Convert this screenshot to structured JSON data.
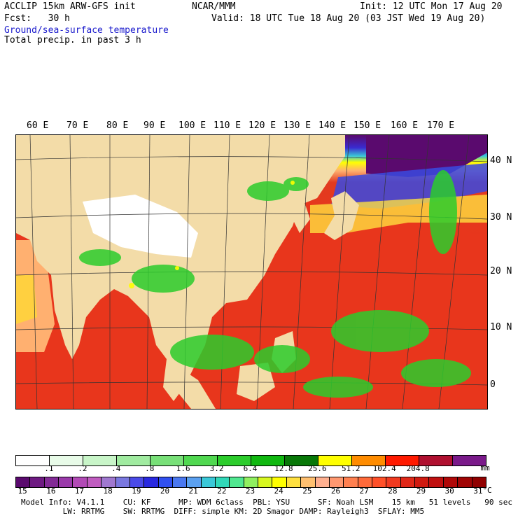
{
  "header": {
    "line1_left": "ACCLIP 15km ARW-GFS init",
    "line1_center": "NCAR/MMM",
    "line1_right": "Init: 12 UTC Mon 17 Aug 20",
    "line2_left": "Fcst:   30 h",
    "line2_right": "Valid: 18 UTC Tue 18 Aug 20 (03 JST Wed 19 Aug 20)",
    "line3": "Ground/sea-surface temperature",
    "line4": "Total precip. in past 3 h"
  },
  "map": {
    "lon_labels": [
      "60 E",
      "70 E",
      "80 E",
      "90 E",
      "100 E",
      "110 E",
      "120 E",
      "130 E",
      "140 E",
      "150 E",
      "160 E",
      "170 E"
    ],
    "lat_labels": [
      "40 N",
      "30 N",
      "20 N",
      "10 N",
      "0"
    ]
  },
  "precip_bar": {
    "colors": [
      "#ffffff",
      "#e8fbe8",
      "#c8f5c8",
      "#a0eba0",
      "#78e078",
      "#50d850",
      "#2ccc2c",
      "#10b810",
      "#087808",
      "#ffff00",
      "#ff8c00",
      "#ff1a00",
      "#b01030",
      "#7a1a8a"
    ],
    "ticks": [
      ".1",
      ".2",
      ".4",
      ".8",
      "1.6",
      "3.2",
      "6.4",
      "12.8",
      "25.6",
      "51.2",
      "102.4",
      "204.8"
    ],
    "unit": "mm"
  },
  "temp_bar": {
    "colors": [
      "#5a0a6e",
      "#6e1a82",
      "#822a96",
      "#9a3aaa",
      "#b24ab6",
      "#c05cc0",
      "#a078d0",
      "#7a78e0",
      "#4a4ae8",
      "#2828e0",
      "#3050f0",
      "#4a78f0",
      "#5aa0f0",
      "#3ac8d8",
      "#30d8b8",
      "#50e890",
      "#90f060",
      "#d8f820",
      "#ffff00",
      "#ffe040",
      "#ffc070",
      "#ffb090",
      "#ff9870",
      "#ff8050",
      "#ff6a3a",
      "#ff5028",
      "#f03a20",
      "#e02818",
      "#d01a10",
      "#c01010",
      "#b00808",
      "#a00404",
      "#900000"
    ],
    "ticks": [
      "15",
      "16",
      "17",
      "18",
      "19",
      "20",
      "21",
      "22",
      "23",
      "24",
      "25",
      "26",
      "27",
      "28",
      "29",
      "30",
      "31"
    ],
    "unit": "°C"
  },
  "footer": {
    "line1": "Model Info: V4.1.1    CU: KF      MP: WDM 6class  PBL: YSU      SF: Noah LSM    15 km   51 levels   90 sec",
    "line2": "         LW: RRTMG    SW: RRTMG  DIFF: simple KM: 2D Smagor DAMP: Rayleigh3  SFLAY: MM5"
  }
}
